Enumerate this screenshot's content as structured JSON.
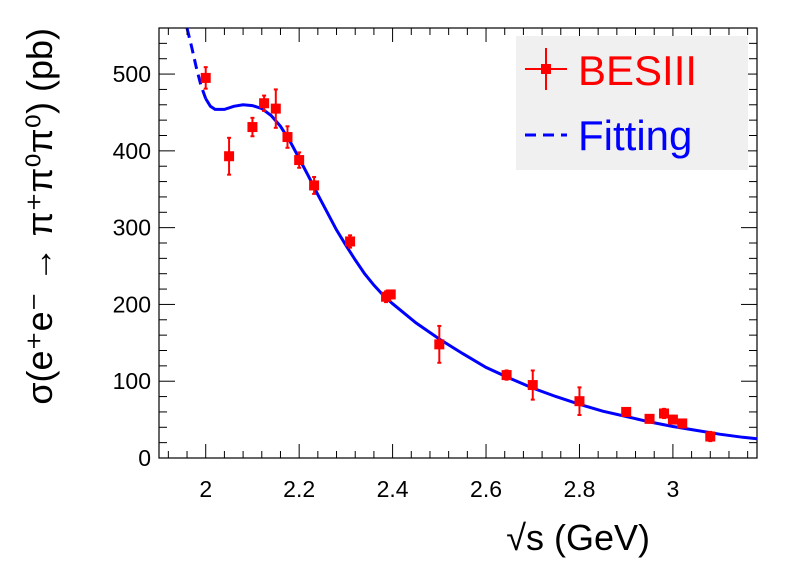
{
  "chart_data": {
    "type": "scatter",
    "xlabel": "√s (GeV)",
    "ylabel": "σ(e⁺e⁻ → π⁺π⁰π⁰) (pb)",
    "xlim": [
      1.9,
      3.18
    ],
    "ylim": [
      0,
      560
    ],
    "x_ticks": [
      "2",
      "2.2",
      "2.4",
      "2.6",
      "2.8",
      "3"
    ],
    "y_ticks": [
      "0",
      "100",
      "200",
      "300",
      "400",
      "500"
    ],
    "grid": false,
    "legend_position": "top-right",
    "series": [
      {
        "name": "BESIII",
        "kind": "points-with-error-bars",
        "color": "#ff0000",
        "points": [
          {
            "x": 2.0,
            "y": 495,
            "err": 14
          },
          {
            "x": 2.05,
            "y": 393,
            "err": 24
          },
          {
            "x": 2.1,
            "y": 431,
            "err": 12
          },
          {
            "x": 2.125,
            "y": 462,
            "err": 10
          },
          {
            "x": 2.15,
            "y": 455,
            "err": 25
          },
          {
            "x": 2.175,
            "y": 418,
            "err": 14
          },
          {
            "x": 2.2,
            "y": 388,
            "err": 10
          },
          {
            "x": 2.232,
            "y": 355,
            "err": 11
          },
          {
            "x": 2.309,
            "y": 282,
            "err": 8
          },
          {
            "x": 2.386,
            "y": 210,
            "err": 7
          },
          {
            "x": 2.396,
            "y": 213,
            "err": 5
          },
          {
            "x": 2.5,
            "y": 148,
            "err": 24
          },
          {
            "x": 2.644,
            "y": 108,
            "err": 6
          },
          {
            "x": 2.7,
            "y": 95,
            "err": 19
          },
          {
            "x": 2.8,
            "y": 74,
            "err": 18
          },
          {
            "x": 2.9,
            "y": 60,
            "err": 5
          },
          {
            "x": 2.95,
            "y": 51,
            "err": 5
          },
          {
            "x": 2.981,
            "y": 58,
            "err": 6
          },
          {
            "x": 3.0,
            "y": 50,
            "err": 5
          },
          {
            "x": 3.02,
            "y": 45,
            "err": 5
          },
          {
            "x": 3.08,
            "y": 28,
            "err": 6
          }
        ]
      },
      {
        "name": "Fitting",
        "kind": "line",
        "color": "#0000ff",
        "points": [
          [
            1.96,
            560
          ],
          [
            1.97,
            535
          ],
          [
            1.98,
            508
          ],
          [
            1.99,
            485
          ],
          [
            2.0,
            468
          ],
          [
            2.01,
            458
          ],
          [
            2.02,
            454
          ],
          [
            2.04,
            454
          ],
          [
            2.06,
            458
          ],
          [
            2.08,
            460
          ],
          [
            2.1,
            459
          ],
          [
            2.12,
            455
          ],
          [
            2.14,
            446
          ],
          [
            2.16,
            432
          ],
          [
            2.18,
            413
          ],
          [
            2.2,
            390
          ],
          [
            2.22,
            367
          ],
          [
            2.24,
            343
          ],
          [
            2.26,
            320
          ],
          [
            2.28,
            297
          ],
          [
            2.3,
            277
          ],
          [
            2.32,
            258
          ],
          [
            2.34,
            240
          ],
          [
            2.36,
            225
          ],
          [
            2.38,
            212
          ],
          [
            2.4,
            201
          ],
          [
            2.45,
            176
          ],
          [
            2.5,
            155
          ],
          [
            2.55,
            136
          ],
          [
            2.6,
            118
          ],
          [
            2.65,
            104
          ],
          [
            2.7,
            91
          ],
          [
            2.75,
            80
          ],
          [
            2.8,
            70
          ],
          [
            2.85,
            61
          ],
          [
            2.9,
            54
          ],
          [
            2.95,
            47
          ],
          [
            3.0,
            41
          ],
          [
            3.05,
            36
          ],
          [
            3.1,
            31
          ],
          [
            3.15,
            27
          ],
          [
            3.18,
            25
          ]
        ],
        "dashed_until_x": 2.0
      }
    ]
  }
}
